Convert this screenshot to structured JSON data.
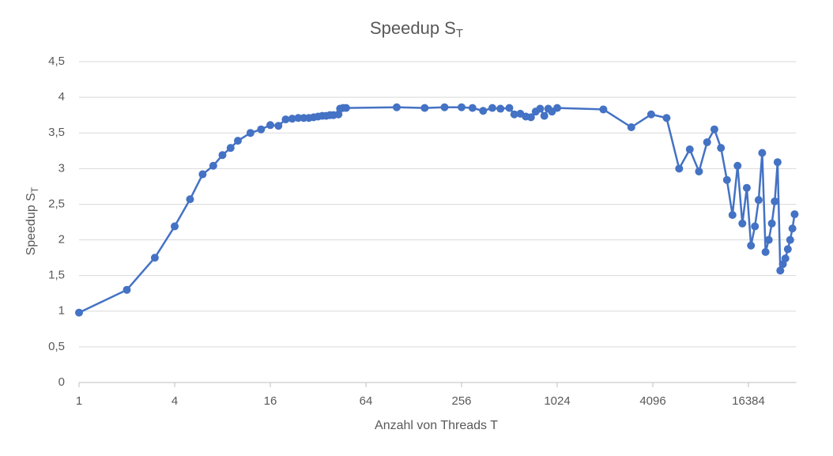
{
  "chart_data": {
    "type": "line",
    "title": {
      "text": "Speedup S",
      "sub": "T"
    },
    "x_label": "Anzahl von Threads T",
    "y_label": {
      "text": "Speedup S",
      "sub": "T"
    },
    "log_x": true,
    "log_base": 2,
    "grid": true,
    "color": "#4472c4",
    "xlim": [
      1,
      32768
    ],
    "xticks": [
      1,
      4,
      16,
      64,
      256,
      1024,
      4096,
      16384
    ],
    "ylim": [
      0,
      4.5
    ],
    "yticks": [
      0,
      {
        "value": 0.5,
        "label": "0,5"
      },
      1,
      {
        "value": 1.5,
        "label": "1,5"
      },
      2,
      {
        "value": 2.5,
        "label": "2,5"
      },
      3,
      {
        "value": 3.5,
        "label": "3,5"
      },
      4,
      {
        "value": 4.5,
        "label": "4,5"
      }
    ],
    "x": [
      1,
      2,
      3,
      4,
      5,
      6,
      7,
      8,
      9,
      10,
      12,
      14,
      16,
      18,
      20,
      22,
      24,
      26,
      28,
      30,
      32,
      34,
      36,
      38,
      40,
      43,
      44,
      46,
      48,
      100,
      150,
      200,
      256,
      300,
      350,
      400,
      450,
      512,
      550,
      600,
      650,
      700,
      750,
      800,
      850,
      900,
      950,
      1024,
      2000,
      3000,
      4000,
      5000,
      6000,
      7000,
      8000,
      9000,
      10000,
      11000,
      12000,
      13000,
      14000,
      15000,
      16000,
      17000,
      18000,
      19000,
      20000,
      21000,
      22000,
      23000,
      24000,
      25000,
      26000,
      27000,
      28000,
      29000,
      30000,
      31000,
      32000
    ],
    "series": [
      {
        "name": "Speedup",
        "values": [
          0.98,
          1.3,
          1.75,
          2.19,
          2.57,
          2.92,
          3.04,
          3.19,
          3.29,
          3.39,
          3.5,
          3.55,
          3.61,
          3.6,
          3.69,
          3.7,
          3.71,
          3.71,
          3.71,
          3.72,
          3.73,
          3.74,
          3.74,
          3.75,
          3.75,
          3.76,
          3.84,
          3.85,
          3.85,
          3.86,
          3.85,
          3.86,
          3.86,
          3.85,
          3.81,
          3.85,
          3.84,
          3.85,
          3.76,
          3.77,
          3.73,
          3.72,
          3.8,
          3.84,
          3.74,
          3.84,
          3.8,
          3.85,
          3.83,
          3.58,
          3.76,
          3.71,
          3.0,
          3.27,
          2.96,
          3.37,
          3.55,
          3.29,
          2.84,
          2.35,
          3.04,
          2.23,
          2.73,
          1.92,
          2.19,
          2.56,
          3.22,
          1.83,
          2.0,
          2.23,
          2.54,
          3.09,
          1.57,
          1.66,
          1.74,
          1.87,
          2.0,
          2.16,
          2.36
        ]
      }
    ]
  }
}
